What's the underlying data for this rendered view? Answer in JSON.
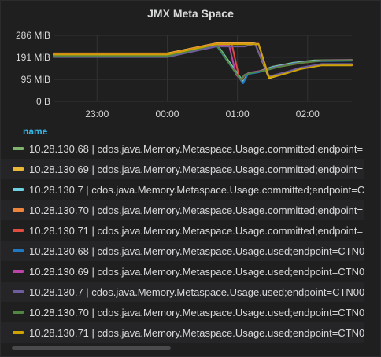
{
  "panel": {
    "title": "JMX Meta Space"
  },
  "legend": {
    "header": "name",
    "items": [
      {
        "label": "10.28.130.68 | cdos.java.Memory.Metaspace.Usage.committed;endpoint=",
        "color": "#7eb26d"
      },
      {
        "label": "10.28.130.69 | cdos.java.Memory.Metaspace.Usage.committed;endpoint=",
        "color": "#eab839"
      },
      {
        "label": "10.28.130.7 | cdos.java.Memory.Metaspace.Usage.committed;endpoint=C",
        "color": "#6ed0e0"
      },
      {
        "label": "10.28.130.70 | cdos.java.Memory.Metaspace.Usage.committed;endpoint=",
        "color": "#ef843c"
      },
      {
        "label": "10.28.130.71 | cdos.java.Memory.Metaspace.Usage.committed;endpoint=",
        "color": "#e24d42"
      },
      {
        "label": "10.28.130.68 | cdos.java.Memory.Metaspace.Usage.used;endpoint=CTN0",
        "color": "#1f78c1"
      },
      {
        "label": "10.28.130.69 | cdos.java.Memory.Metaspace.Usage.used;endpoint=CTN0",
        "color": "#ba43a9"
      },
      {
        "label": "10.28.130.7 | cdos.java.Memory.Metaspace.Usage.used;endpoint=CTN00",
        "color": "#705da0"
      },
      {
        "label": "10.28.130.70 | cdos.java.Memory.Metaspace.Usage.used;endpoint=CTN0",
        "color": "#508642"
      },
      {
        "label": "10.28.130.71 | cdos.java.Memory.Metaspace.Usage.used;endpoint=CTN0",
        "color": "#cca300"
      }
    ]
  },
  "chart_data": {
    "type": "line",
    "title": "JMX Meta Space",
    "x_unit": "hours since 23:00",
    "xlim": [
      -0.62,
      3.63
    ],
    "ylim": [
      0,
      286
    ],
    "y_ticks": [
      {
        "value": 286,
        "label": "286 MiB"
      },
      {
        "value": 191,
        "label": "191 MiB"
      },
      {
        "value": 95,
        "label": "95 MiB"
      },
      {
        "value": 0,
        "label": "0 B"
      }
    ],
    "x_ticks": [
      {
        "value": 0,
        "label": "23:00"
      },
      {
        "value": 1,
        "label": "00:00"
      },
      {
        "value": 2,
        "label": "01:00"
      },
      {
        "value": 3,
        "label": "02:00"
      }
    ],
    "grid": true,
    "series": [
      {
        "name": "10.28.130.68 | cdos.java.Memory.Metaspace.Usage.committed",
        "color": "#7eb26d",
        "x": [
          -0.62,
          1.0,
          1.7,
          2.05,
          2.08,
          2.15,
          2.3,
          2.5,
          2.8,
          3.1,
          3.63
        ],
        "y": [
          199,
          199,
          250,
          100,
          85,
          122,
          130,
          150,
          168,
          178,
          180
        ]
      },
      {
        "name": "10.28.130.69 | cdos.java.Memory.Metaspace.Usage.committed",
        "color": "#eab839",
        "x": [
          -0.62,
          1.0,
          1.7,
          2.25,
          2.45,
          2.7,
          2.9,
          3.2,
          3.63
        ],
        "y": [
          208,
          208,
          252,
          252,
          100,
          122,
          142,
          158,
          158
        ]
      },
      {
        "name": "10.28.130.7 | cdos.java.Memory.Metaspace.Usage.committed",
        "color": "#6ed0e0",
        "x": [
          -0.62,
          1.0,
          1.7,
          2.05,
          2.08,
          2.15,
          2.3,
          2.5,
          2.8,
          3.1,
          3.63
        ],
        "y": [
          197,
          197,
          247,
          98,
          80,
          120,
          128,
          148,
          166,
          176,
          178
        ]
      },
      {
        "name": "10.28.130.70 | cdos.java.Memory.Metaspace.Usage.committed",
        "color": "#ef843c",
        "x": [
          -0.62,
          1.0,
          1.7,
          2.3,
          2.45,
          2.7,
          2.9,
          3.2,
          3.63
        ],
        "y": [
          205,
          205,
          250,
          250,
          105,
          125,
          144,
          160,
          160
        ]
      },
      {
        "name": "10.28.130.71 | cdos.java.Memory.Metaspace.Usage.committed",
        "color": "#e24d42",
        "x": [
          -0.62,
          1.0,
          1.7,
          1.92,
          2.02,
          2.05,
          2.1,
          2.2,
          2.4,
          2.6,
          2.9,
          3.2,
          3.63
        ],
        "y": [
          204,
          204,
          248,
          248,
          110,
          90,
          112,
          125,
          135,
          150,
          166,
          176,
          178
        ]
      },
      {
        "name": "10.28.130.68 | cdos.java.Memory.Metaspace.Usage.used",
        "color": "#1f78c1",
        "x": [
          -0.62,
          1.0,
          1.7,
          2.05,
          2.08,
          2.15,
          2.3,
          2.5,
          2.8,
          3.1,
          3.63
        ],
        "y": [
          194,
          194,
          242,
          92,
          78,
          118,
          126,
          146,
          164,
          174,
          176
        ]
      },
      {
        "name": "10.28.130.69 | cdos.java.Memory.Metaspace.Usage.used",
        "color": "#ba43a9",
        "x": [
          -0.62,
          1.0,
          1.7,
          1.88,
          1.98,
          2.05,
          2.1,
          2.2,
          2.4,
          2.6,
          2.9,
          3.2,
          3.63
        ],
        "y": [
          200,
          200,
          245,
          245,
          115,
          95,
          115,
          126,
          136,
          152,
          168,
          177,
          179
        ]
      },
      {
        "name": "10.28.130.7 | cdos.java.Memory.Metaspace.Usage.used",
        "color": "#705da0",
        "x": [
          -0.62,
          1.0,
          1.7,
          2.1,
          2.25,
          2.45,
          2.7,
          2.9,
          3.2,
          3.63
        ],
        "y": [
          192,
          192,
          238,
          238,
          250,
          108,
          128,
          146,
          162,
          162
        ]
      },
      {
        "name": "10.28.130.70 | cdos.java.Memory.Metaspace.Usage.used",
        "color": "#508642",
        "x": [
          -0.62,
          1.0,
          1.7,
          2.0,
          2.05,
          2.1,
          2.2,
          2.4,
          2.6,
          2.9,
          3.2,
          3.63
        ],
        "y": [
          196,
          196,
          246,
          112,
          95,
          114,
          124,
          134,
          150,
          167,
          176,
          178
        ]
      },
      {
        "name": "10.28.130.71 | cdos.java.Memory.Metaspace.Usage.used",
        "color": "#cca300",
        "x": [
          -0.62,
          1.0,
          1.7,
          2.3,
          2.45,
          2.7,
          2.9,
          3.2,
          3.63
        ],
        "y": [
          203,
          203,
          248,
          248,
          103,
          122,
          140,
          156,
          156
        ]
      }
    ]
  }
}
